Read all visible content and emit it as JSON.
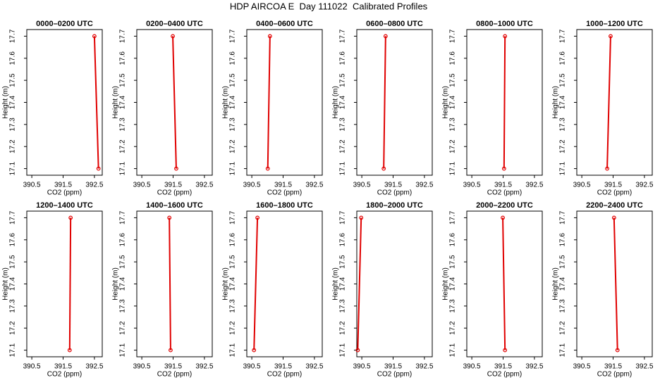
{
  "title": "HDP AIRCOA E  Day 111022  Calibrated Profiles",
  "chart_data": [
    {
      "type": "line",
      "title": "0000–0200 UTC",
      "x_label": "CO2 (ppm)",
      "y_label": "Height (m)",
      "x": [
        392.63,
        392.5
      ],
      "values": [
        17.1,
        17.7
      ],
      "color": "#e00000",
      "xlim": [
        390.34,
        392.75
      ],
      "xticks": [
        390.5,
        391.5,
        392.5
      ],
      "ylim": [
        17.07,
        17.73
      ],
      "yticks": [
        17.1,
        17.2,
        17.3,
        17.4,
        17.5,
        17.6,
        17.7
      ]
    },
    {
      "type": "line",
      "title": "0200–0400 UTC",
      "x_label": "CO2 (ppm)",
      "y_label": "Height (m)",
      "x": [
        391.6,
        391.49
      ],
      "values": [
        17.1,
        17.7
      ],
      "color": "#e00000",
      "xlim": [
        390.34,
        392.75
      ],
      "xticks": [
        390.5,
        391.5,
        392.5
      ],
      "ylim": [
        17.07,
        17.73
      ],
      "yticks": [
        17.1,
        17.2,
        17.3,
        17.4,
        17.5,
        17.6,
        17.7
      ]
    },
    {
      "type": "line",
      "title": "0400–0600 UTC",
      "x_label": "CO2 (ppm)",
      "y_label": "Height (m)",
      "x": [
        391.01,
        391.08
      ],
      "values": [
        17.1,
        17.7
      ],
      "color": "#e00000",
      "xlim": [
        390.34,
        392.75
      ],
      "xticks": [
        390.5,
        391.5,
        392.5
      ],
      "ylim": [
        17.07,
        17.73
      ],
      "yticks": [
        17.1,
        17.2,
        17.3,
        17.4,
        17.5,
        17.6,
        17.7
      ]
    },
    {
      "type": "line",
      "title": "0600–0800 UTC",
      "x_label": "CO2 (ppm)",
      "y_label": "Height (m)",
      "x": [
        391.2,
        391.26
      ],
      "values": [
        17.1,
        17.7
      ],
      "color": "#e00000",
      "xlim": [
        390.34,
        392.75
      ],
      "xticks": [
        390.5,
        391.5,
        392.5
      ],
      "ylim": [
        17.07,
        17.73
      ],
      "yticks": [
        17.1,
        17.2,
        17.3,
        17.4,
        17.5,
        17.6,
        17.7
      ]
    },
    {
      "type": "line",
      "title": "0800–1000 UTC",
      "x_label": "CO2 (ppm)",
      "y_label": "Height (m)",
      "x": [
        391.53,
        391.56
      ],
      "values": [
        17.1,
        17.7
      ],
      "color": "#e00000",
      "xlim": [
        390.34,
        392.75
      ],
      "xticks": [
        390.5,
        391.5,
        392.5
      ],
      "ylim": [
        17.07,
        17.73
      ],
      "yticks": [
        17.1,
        17.2,
        17.3,
        17.4,
        17.5,
        17.6,
        17.7
      ]
    },
    {
      "type": "line",
      "title": "1000–1200 UTC",
      "x_label": "CO2 (ppm)",
      "y_label": "Height (m)",
      "x": [
        391.31,
        391.42
      ],
      "values": [
        17.1,
        17.7
      ],
      "color": "#e00000",
      "xlim": [
        390.34,
        392.75
      ],
      "xticks": [
        390.5,
        391.5,
        392.5
      ],
      "ylim": [
        17.07,
        17.73
      ],
      "yticks": [
        17.1,
        17.2,
        17.3,
        17.4,
        17.5,
        17.6,
        17.7
      ]
    },
    {
      "type": "line",
      "title": "1200–1400 UTC",
      "x_label": "CO2 (ppm)",
      "y_label": "Height (m)",
      "x": [
        391.71,
        391.74
      ],
      "values": [
        17.1,
        17.7
      ],
      "color": "#e00000",
      "xlim": [
        390.34,
        392.75
      ],
      "xticks": [
        390.5,
        391.5,
        392.5
      ],
      "ylim": [
        17.07,
        17.73
      ],
      "yticks": [
        17.1,
        17.2,
        17.3,
        17.4,
        17.5,
        17.6,
        17.7
      ]
    },
    {
      "type": "line",
      "title": "1400–1600 UTC",
      "x_label": "CO2 (ppm)",
      "y_label": "Height (m)",
      "x": [
        391.42,
        391.38
      ],
      "values": [
        17.1,
        17.7
      ],
      "color": "#e00000",
      "xlim": [
        390.34,
        392.75
      ],
      "xticks": [
        390.5,
        391.5,
        392.5
      ],
      "ylim": [
        17.07,
        17.73
      ],
      "yticks": [
        17.1,
        17.2,
        17.3,
        17.4,
        17.5,
        17.6,
        17.7
      ]
    },
    {
      "type": "line",
      "title": "1600–1800 UTC",
      "x_label": "CO2 (ppm)",
      "y_label": "Height (m)",
      "x": [
        390.57,
        390.68
      ],
      "values": [
        17.1,
        17.7
      ],
      "color": "#e00000",
      "xlim": [
        390.34,
        392.75
      ],
      "xticks": [
        390.5,
        391.5,
        392.5
      ],
      "ylim": [
        17.07,
        17.73
      ],
      "yticks": [
        17.1,
        17.2,
        17.3,
        17.4,
        17.5,
        17.6,
        17.7
      ]
    },
    {
      "type": "line",
      "title": "1800–2000 UTC",
      "x_label": "CO2 (ppm)",
      "y_label": "Height (m)",
      "x": [
        390.37,
        390.48
      ],
      "values": [
        17.1,
        17.7
      ],
      "color": "#e00000",
      "xlim": [
        390.34,
        392.75
      ],
      "xticks": [
        390.5,
        391.5,
        392.5
      ],
      "ylim": [
        17.07,
        17.73
      ],
      "yticks": [
        17.1,
        17.2,
        17.3,
        17.4,
        17.5,
        17.6,
        17.7
      ]
    },
    {
      "type": "line",
      "title": "2000–2200 UTC",
      "x_label": "CO2 (ppm)",
      "y_label": "Height (m)",
      "x": [
        391.56,
        391.49
      ],
      "values": [
        17.1,
        17.7
      ],
      "color": "#e00000",
      "xlim": [
        390.34,
        392.75
      ],
      "xticks": [
        390.5,
        391.5,
        392.5
      ],
      "ylim": [
        17.07,
        17.73
      ],
      "yticks": [
        17.1,
        17.2,
        17.3,
        17.4,
        17.5,
        17.6,
        17.7
      ]
    },
    {
      "type": "line",
      "title": "2200–2400 UTC",
      "x_label": "CO2 (ppm)",
      "y_label": "Height (m)",
      "x": [
        391.64,
        391.53
      ],
      "values": [
        17.1,
        17.7
      ],
      "color": "#e00000",
      "xlim": [
        390.34,
        392.75
      ],
      "xticks": [
        390.5,
        391.5,
        392.5
      ],
      "ylim": [
        17.07,
        17.73
      ],
      "yticks": [
        17.1,
        17.2,
        17.3,
        17.4,
        17.5,
        17.6,
        17.7
      ]
    }
  ]
}
